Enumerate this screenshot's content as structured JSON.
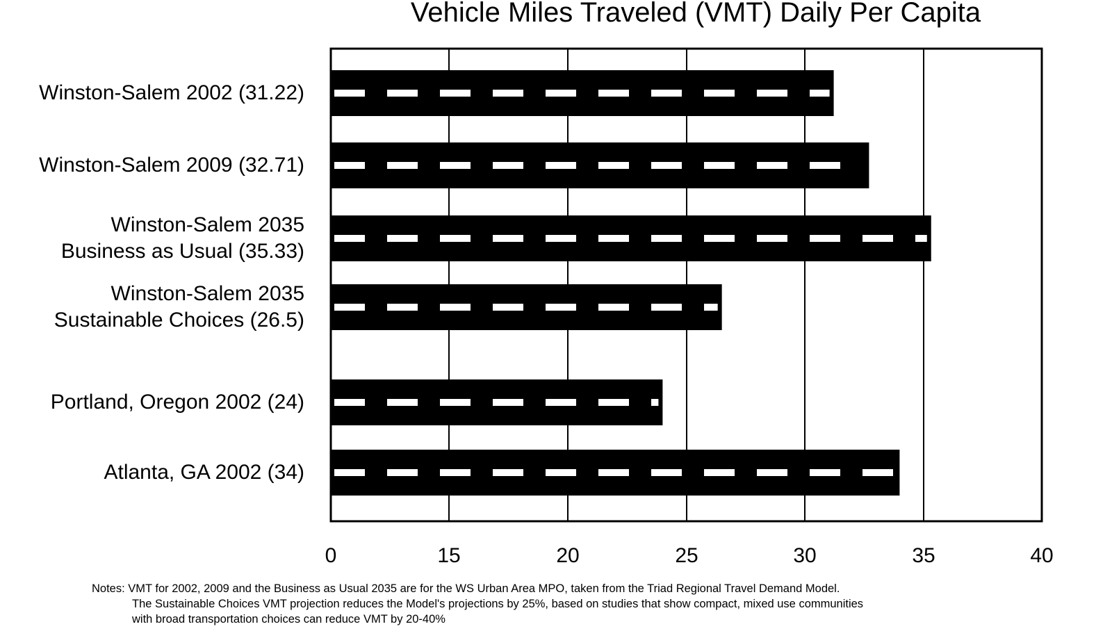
{
  "chart_data": {
    "type": "bar",
    "orientation": "horizontal",
    "title": "Vehicle Miles Traveled (VMT) Daily Per Capita",
    "categories": [
      [
        "Winston-Salem 2002 (31.22)"
      ],
      [
        "Winston-Salem 2009 (32.71)"
      ],
      [
        "Winston-Salem 2035",
        "Business as Usual (35.33)"
      ],
      [
        "Winston-Salem 2035",
        "Sustainable Choices (26.5)"
      ],
      [
        "Portland, Oregon 2002 (24)"
      ],
      [
        "Atlanta, GA  2002 (34)"
      ]
    ],
    "values": [
      31.22,
      32.71,
      35.33,
      26.5,
      24,
      34
    ],
    "x_ticks": [
      "0",
      "15",
      "20",
      "25",
      "30",
      "35",
      "40"
    ],
    "xlim": [
      10,
      40
    ],
    "xlabel": "",
    "ylabel": "",
    "grid": true,
    "bar_color": "#000000",
    "dash_color": "#ffffff"
  },
  "notes": [
    "Notes: VMT for 2002, 2009 and the Business as Usual 2035 are for the WS Urban Area MPO, taken from the Triad Regional Travel Demand Model.",
    "The Sustainable Choices VMT projection reduces the Model's projections by 25%, based on studies that show compact, mixed use communities",
    "with broad transportation choices can reduce VMT by 20-40%"
  ]
}
